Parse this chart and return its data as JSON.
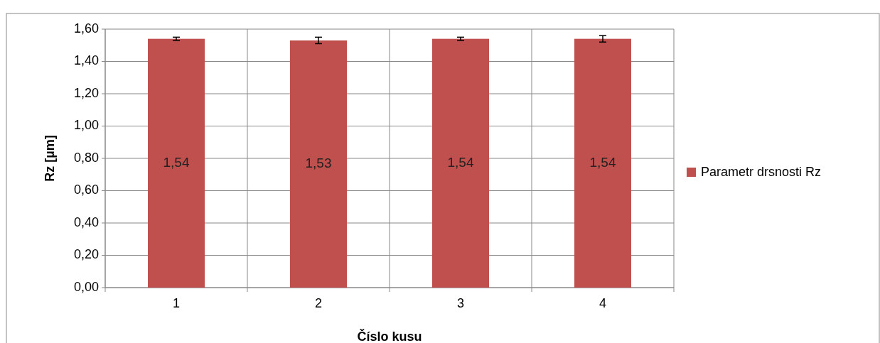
{
  "chart_data": {
    "type": "bar",
    "xlabel": "Číslo kusu",
    "ylabel": "Rz [µm]",
    "categories": [
      "1",
      "2",
      "3",
      "4"
    ],
    "series": [
      {
        "name": "Parametr drsnosti Rz",
        "color": "#c0504d",
        "values": [
          1.54,
          1.53,
          1.54,
          1.54
        ],
        "errors": [
          0.01,
          0.02,
          0.01,
          0.02
        ],
        "value_labels": [
          "1,54",
          "1,53",
          "1,54",
          "1,54"
        ]
      }
    ],
    "ylim": [
      0,
      1.6
    ],
    "yticks": [
      {
        "value": 0,
        "label": "0,00"
      },
      {
        "value": 0.2,
        "label": "0,20"
      },
      {
        "value": 0.4,
        "label": "0,40"
      },
      {
        "value": 0.6,
        "label": "0,60"
      },
      {
        "value": 0.8,
        "label": "0,80"
      },
      {
        "value": 1,
        "label": "1,00"
      },
      {
        "value": 1.2,
        "label": "1,20"
      },
      {
        "value": 1.4,
        "label": "1,40"
      },
      {
        "value": 1.6,
        "label": "1,60"
      }
    ],
    "grid": true,
    "legend": "right"
  }
}
